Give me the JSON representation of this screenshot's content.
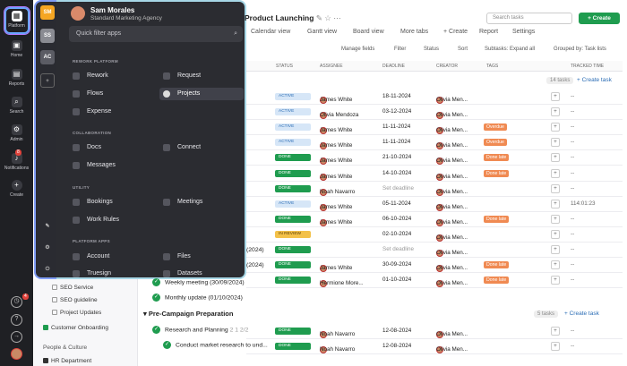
{
  "rail": {
    "items": [
      {
        "label": "Platform",
        "icon": "platform-icon"
      },
      {
        "label": "Home",
        "icon": "home-icon"
      },
      {
        "label": "Reports",
        "icon": "reports-icon"
      },
      {
        "label": "Search",
        "icon": "search-icon"
      },
      {
        "label": "Admin",
        "icon": "admin-icon"
      },
      {
        "label": "Notifications",
        "icon": "bell-icon",
        "badge": "8"
      },
      {
        "label": "Create",
        "icon": "plus-icon"
      }
    ],
    "bottom_badge": "4"
  },
  "workspaces": [
    {
      "initials": "SM",
      "color": "#f5a623"
    },
    {
      "initials": "SS",
      "color": "#8a8b92"
    },
    {
      "initials": "AC",
      "color": "#5b5c64"
    }
  ],
  "panel": {
    "user": "Sam Morales",
    "org": "Standard Marketing Agency",
    "filter_placeholder": "Quick filter apps",
    "sections": [
      {
        "name": "REWORK PLATFORM",
        "apps": [
          "Rework",
          "Request",
          "Flows",
          "Projects",
          "Expense"
        ]
      },
      {
        "name": "COLLABORATION",
        "apps": [
          "Docs",
          "Connect",
          "Messages"
        ]
      },
      {
        "name": "UTILITY",
        "apps": [
          "Bookings",
          "Meetings",
          "Work Rules"
        ]
      },
      {
        "name": "PLATFORM APPS",
        "apps": [
          "Account",
          "Files",
          "Truesign",
          "Datasets"
        ]
      }
    ]
  },
  "sidebar": {
    "items": [
      "SEO Service",
      "SEO guideline",
      "Project Updates",
      "Customer Onboarding",
      "People & Culture",
      "HR Department"
    ]
  },
  "main": {
    "title": "Product Launching",
    "search_placeholder": "Search tasks",
    "create": "+ Create",
    "views": [
      "Calendar view",
      "Gantt view",
      "Board view",
      "More tabs",
      "+ Create",
      "Report",
      "Settings"
    ],
    "subbar": [
      "Manage fields",
      "Filter",
      "Status",
      "Sort",
      "Subtasks: Expand all",
      "Grouped by: Task lists"
    ],
    "headers": [
      "STATUS",
      "ASSIGNEE",
      "DEADLINE",
      "CREATOR",
      "TAGS",
      "TRACKED TIME"
    ],
    "task_count": "14 tasks",
    "add_task": "+ Create task",
    "rows": [
      {
        "status": "ACTIVE",
        "assignee": "James White",
        "deadline": "18-11-2024",
        "creator": "Olivia Men...",
        "tag": "",
        "time": "--"
      },
      {
        "status": "ACTIVE",
        "assignee": "Olivia Mendoza",
        "deadline": "03-12-2024",
        "creator": "Olivia Men...",
        "tag": "",
        "time": "--"
      },
      {
        "status": "ACTIVE",
        "assignee": "James White",
        "deadline": "11-11-2024",
        "creator": "Olivia Men...",
        "tag": "Overdue",
        "time": "--"
      },
      {
        "status": "ACTIVE",
        "assignee": "James White",
        "deadline": "11-11-2024",
        "creator": "Olivia Men...",
        "tag": "Overdue",
        "time": "--"
      },
      {
        "status": "DONE",
        "assignee": "James White",
        "deadline": "21-10-2024",
        "creator": "Olivia Men...",
        "tag": "Done late",
        "time": "--"
      },
      {
        "status": "DONE",
        "assignee": "James White",
        "deadline": "14-10-2024",
        "creator": "Olivia Men...",
        "tag": "Done late",
        "time": "--"
      },
      {
        "status": "DONE",
        "assignee": "Noah Navarro",
        "deadline": "Set deadline",
        "creator": "Olivia Men...",
        "tag": "",
        "time": "--"
      },
      {
        "status": "ACTIVE",
        "assignee": "James White",
        "deadline": "05-11-2024",
        "creator": "Olivia Men...",
        "tag": "",
        "time": "114:01:23"
      },
      {
        "status": "DONE",
        "assignee": "James White",
        "deadline": "06-10-2024",
        "creator": "Olivia Men...",
        "tag": "Done late",
        "time": "--"
      },
      {
        "status": "IN REVIEW",
        "assignee": "",
        "deadline": "02-10-2024",
        "creator": "Olivia Men...",
        "tag": "",
        "time": "--"
      },
      {
        "status": "DONE",
        "assignee": "",
        "deadline": "Set deadline",
        "creator": "Olivia Men...",
        "tag": "",
        "time": "--"
      },
      {
        "status": "DONE",
        "assignee": "James White",
        "deadline": "30-09-2024",
        "creator": "Olivia Men...",
        "tag": "Done late",
        "time": "--"
      },
      {
        "status": "DONE",
        "assignee": "Hermione More...",
        "deadline": "01-10-2024",
        "creator": "Olivia Men...",
        "tag": "Done late",
        "time": "--"
      }
    ],
    "list_items": [
      {
        "name": "(2024)",
        "top": 276
      },
      {
        "name": "(2024)",
        "top": 293
      },
      {
        "name": "Weekly meeting (30/09/2024)",
        "top": 311
      },
      {
        "name": "Monthly update (01/10/2024)",
        "top": 328
      }
    ],
    "group2": {
      "name": "Pre-Campaign Preparation",
      "count": "5 tasks",
      "add_task": "+ Create task"
    },
    "group2_rows": [
      {
        "name": "Research and Planning",
        "meta": "2  1  2/2",
        "status": "DONE",
        "assignee": "Noah Navarro",
        "deadline": "12-08-2024",
        "creator": "Olivia Men...",
        "time": "--"
      },
      {
        "name": "Conduct market research to und...",
        "meta": "",
        "status": "DONE",
        "assignee": "Noah Navarro",
        "deadline": "12-08-2024",
        "creator": "Olivia Men...",
        "time": "--"
      }
    ]
  }
}
